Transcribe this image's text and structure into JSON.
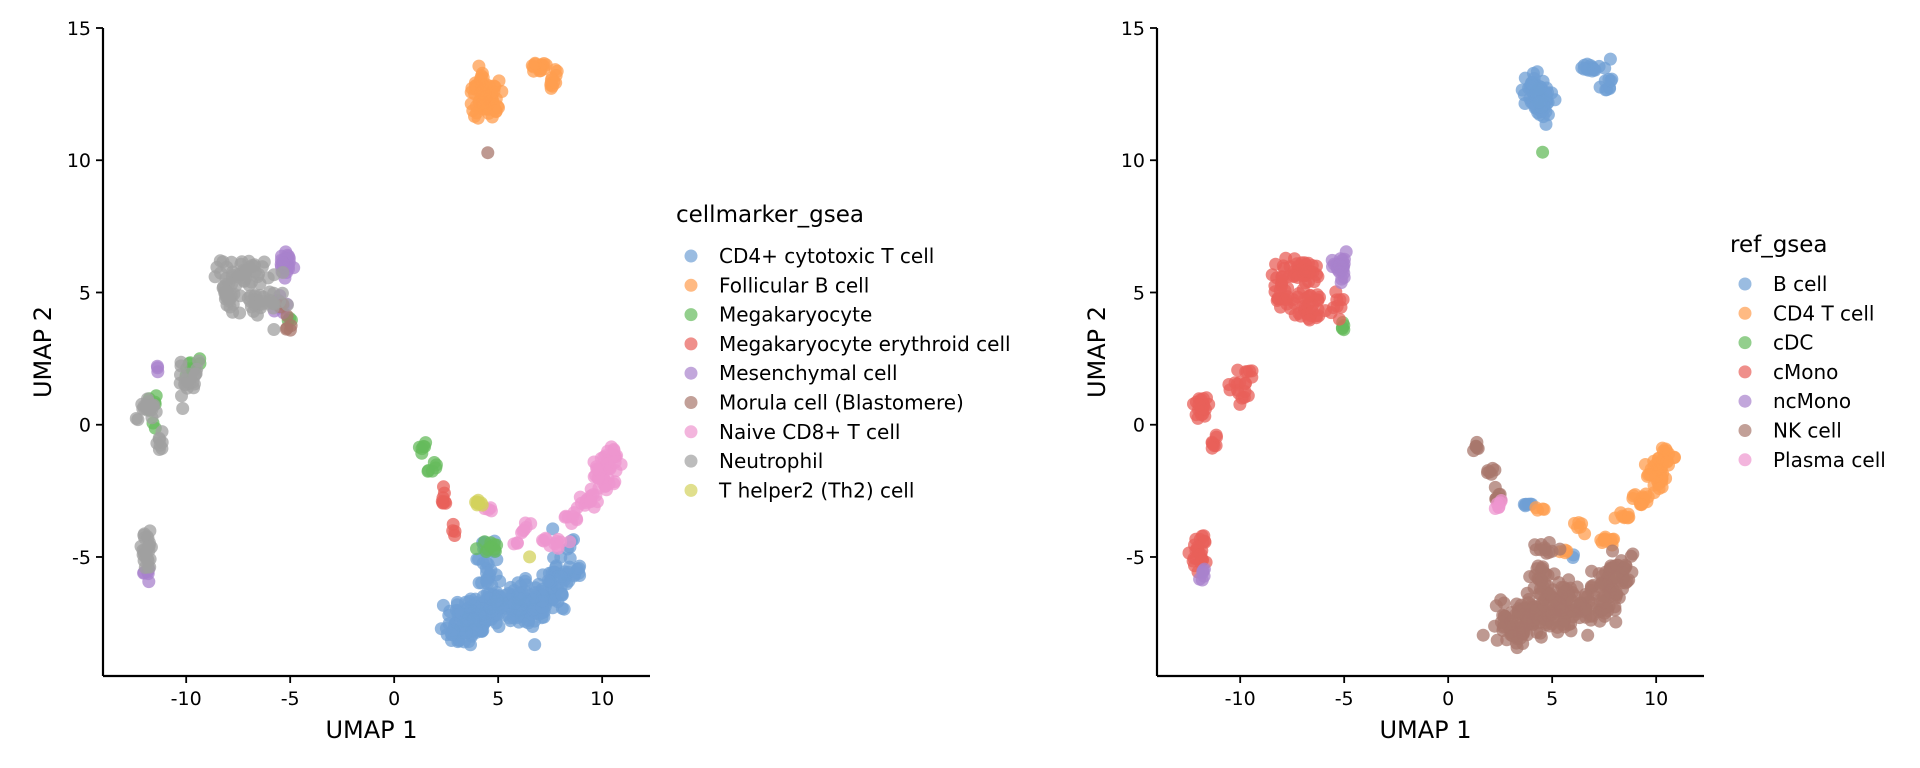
{
  "chart_data": [
    {
      "type": "scatter",
      "xlabel": "UMAP 1",
      "ylabel": "UMAP 2",
      "xlim": [
        -14,
        12.3
      ],
      "ylim": [
        -9.5,
        15
      ],
      "xticks": [
        -10,
        -5,
        0,
        5,
        10
      ],
      "xtick_labels": [
        "-10",
        "-5",
        "0",
        "5",
        "10"
      ],
      "yticks": [
        -5,
        0,
        5,
        10,
        15
      ],
      "ytick_labels": [
        "-5",
        "0",
        "5",
        "10",
        "15"
      ],
      "legend_title": "cellmarker_gsea",
      "legend_position": "right",
      "series": [
        {
          "name": "CD4+ cytotoxic T cell",
          "color": "#6f9fd4",
          "clusters": [
            [
              4.0,
              -7.2,
              1.2,
              0.6,
              70
            ],
            [
              6.0,
              -7.0,
              1.5,
              0.6,
              70
            ],
            [
              3.3,
              -7.8,
              0.8,
              0.5,
              35
            ],
            [
              7.5,
              -6.3,
              0.8,
              0.8,
              40
            ],
            [
              8.3,
              -5.5,
              0.6,
              0.8,
              30
            ],
            [
              4.5,
              -5.8,
              0.4,
              1.0,
              25
            ],
            [
              5.5,
              -6.5,
              0.8,
              0.4,
              25
            ],
            [
              4.3,
              -4.8,
              0.4,
              0.3,
              8
            ],
            [
              6.0,
              -6.2,
              0.5,
              0.4,
              10
            ],
            [
              7.6,
              -3.9,
              0.05,
              0.05,
              1
            ]
          ]
        },
        {
          "name": "Follicular B cell",
          "color": "#ff9d4f",
          "clusters": [
            [
              4.4,
              12.3,
              0.55,
              0.6,
              60
            ],
            [
              4.1,
              12.8,
              0.35,
              0.5,
              20
            ],
            [
              7.0,
              13.5,
              0.5,
              0.2,
              15
            ],
            [
              7.6,
              13.0,
              0.2,
              0.4,
              10
            ]
          ]
        },
        {
          "name": "Megakaryocyte",
          "color": "#65bb5c",
          "clusters": [
            [
              1.4,
              -0.8,
              0.15,
              0.2,
              6
            ],
            [
              1.9,
              -1.7,
              0.2,
              0.25,
              6
            ],
            [
              -9.7,
              2.1,
              0.4,
              0.3,
              10
            ],
            [
              -11.7,
              0.5,
              0.2,
              0.5,
              8
            ],
            [
              4.8,
              -4.6,
              0.6,
              0.2,
              10
            ],
            [
              -5.0,
              3.9,
              0.1,
              0.1,
              3
            ]
          ]
        },
        {
          "name": "Megakaryocyte erythroid cell",
          "color": "#e8605a",
          "clusters": [
            [
              2.4,
              -2.7,
              0.15,
              0.4,
              8
            ],
            [
              2.9,
              -4.1,
              0.15,
              0.3,
              4
            ]
          ]
        },
        {
          "name": "Mesenchymal cell",
          "color": "#a882cc",
          "clusters": [
            [
              -5.2,
              6.0,
              0.35,
              0.45,
              25
            ],
            [
              -5.5,
              4.5,
              0.3,
              0.5,
              10
            ],
            [
              -11.8,
              -5.6,
              0.3,
              0.2,
              6
            ],
            [
              -11.4,
              2.1,
              0.15,
              0.15,
              3
            ]
          ]
        },
        {
          "name": "Morula cell (Blastomere)",
          "color": "#a8776c",
          "clusters": [
            [
              4.5,
              10.3,
              0.05,
              0.05,
              1
            ],
            [
              -5.0,
              3.8,
              0.15,
              0.3,
              5
            ],
            [
              -5.4,
              4.5,
              0.1,
              0.1,
              2
            ]
          ]
        },
        {
          "name": "Naive CD8+ T cell",
          "color": "#ee95cf",
          "clusters": [
            [
              10.1,
              -1.9,
              0.45,
              0.5,
              30
            ],
            [
              9.3,
              -2.8,
              0.4,
              0.3,
              15
            ],
            [
              10.4,
              -1.2,
              0.35,
              0.3,
              15
            ],
            [
              8.5,
              -3.5,
              0.3,
              0.2,
              8
            ],
            [
              7.9,
              -4.4,
              0.3,
              0.3,
              8
            ],
            [
              6.3,
              -3.9,
              0.3,
              0.2,
              6
            ],
            [
              7.3,
              -4.3,
              0.2,
              0.2,
              4
            ],
            [
              4.5,
              -3.2,
              0.2,
              0.1,
              4
            ],
            [
              6.0,
              -4.5,
              0.2,
              0.1,
              3
            ]
          ]
        },
        {
          "name": "Neutrophil",
          "color": "#a0a0a0",
          "clusters": [
            [
              -7.1,
              5.8,
              1.0,
              0.4,
              40
            ],
            [
              -6.6,
              4.5,
              1.0,
              0.5,
              35
            ],
            [
              -8.0,
              5.0,
              0.35,
              0.6,
              20
            ],
            [
              -11.9,
              -4.8,
              0.35,
              0.6,
              25
            ],
            [
              -11.9,
              0.7,
              0.4,
              0.4,
              20
            ],
            [
              -11.2,
              -0.6,
              0.15,
              0.35,
              8
            ],
            [
              -10.0,
              1.5,
              0.4,
              0.6,
              14
            ],
            [
              -9.5,
              2.0,
              0.2,
              0.3,
              6
            ]
          ]
        },
        {
          "name": "T helper2 (Th2) cell",
          "color": "#d3d25c",
          "clusters": [
            [
              3.9,
              -3.0,
              0.25,
              0.1,
              8
            ],
            [
              6.5,
              -5.0,
              0.05,
              0.05,
              1
            ]
          ]
        }
      ]
    },
    {
      "type": "scatter",
      "xlabel": "UMAP 1",
      "ylabel": "UMAP 2",
      "xlim": [
        -14,
        12.3
      ],
      "ylim": [
        -9.5,
        15
      ],
      "xticks": [
        -10,
        -5,
        0,
        5,
        10
      ],
      "xtick_labels": [
        "-10",
        "-5",
        "0",
        "5",
        "10"
      ],
      "yticks": [
        -5,
        0,
        5,
        10,
        15
      ],
      "ytick_labels": [
        "-5",
        "0",
        "5",
        "10",
        "15"
      ],
      "legend_title": "ref_gsea",
      "legend_position": "right",
      "series": [
        {
          "name": "B cell",
          "color": "#6f9fd4",
          "clusters": [
            [
              4.4,
              12.3,
              0.55,
              0.6,
              60
            ],
            [
              4.1,
              12.8,
              0.35,
              0.5,
              20
            ],
            [
              7.0,
              13.5,
              0.5,
              0.2,
              15
            ],
            [
              7.6,
              13.0,
              0.2,
              0.4,
              10
            ],
            [
              3.9,
              -3.0,
              0.25,
              0.1,
              6
            ],
            [
              6.0,
              -5.0,
              0.1,
              0.1,
              2
            ]
          ]
        },
        {
          "name": "CD4 T cell",
          "color": "#ff9d4f",
          "clusters": [
            [
              10.1,
              -1.9,
              0.45,
              0.5,
              30
            ],
            [
              9.3,
              -2.8,
              0.4,
              0.3,
              15
            ],
            [
              10.4,
              -1.2,
              0.35,
              0.3,
              15
            ],
            [
              8.5,
              -3.5,
              0.3,
              0.2,
              8
            ],
            [
              7.9,
              -4.4,
              0.3,
              0.3,
              6
            ],
            [
              6.3,
              -3.9,
              0.3,
              0.2,
              6
            ],
            [
              4.5,
              -3.2,
              0.2,
              0.1,
              4
            ],
            [
              5.5,
              -4.8,
              0.3,
              0.1,
              4
            ],
            [
              7.4,
              -4.3,
              0.2,
              0.2,
              4
            ]
          ]
        },
        {
          "name": "cDC",
          "color": "#65bb5c",
          "clusters": [
            [
              4.5,
              10.3,
              0.05,
              0.05,
              1
            ],
            [
              -5.0,
              3.7,
              0.15,
              0.2,
              5
            ]
          ]
        },
        {
          "name": "cMono",
          "color": "#e8605a",
          "clusters": [
            [
              -7.1,
              5.8,
              1.0,
              0.4,
              40
            ],
            [
              -6.6,
              4.5,
              1.0,
              0.5,
              35
            ],
            [
              -8.0,
              5.0,
              0.35,
              0.6,
              20
            ],
            [
              -11.9,
              -4.8,
              0.35,
              0.6,
              25
            ],
            [
              -11.9,
              0.7,
              0.4,
              0.4,
              20
            ],
            [
              -11.2,
              -0.6,
              0.15,
              0.35,
              8
            ],
            [
              -10.0,
              1.5,
              0.4,
              0.6,
              14
            ],
            [
              -9.5,
              2.0,
              0.2,
              0.3,
              6
            ],
            [
              -5.3,
              4.5,
              0.3,
              0.4,
              8
            ]
          ]
        },
        {
          "name": "ncMono",
          "color": "#a882cc",
          "clusters": [
            [
              -5.2,
              6.0,
              0.35,
              0.45,
              25
            ],
            [
              -11.8,
              -5.6,
              0.3,
              0.2,
              6
            ]
          ]
        },
        {
          "name": "NK cell",
          "color": "#a8776c",
          "clusters": [
            [
              4.0,
              -7.2,
              1.2,
              0.6,
              70
            ],
            [
              6.0,
              -7.0,
              1.5,
              0.6,
              70
            ],
            [
              3.3,
              -7.8,
              0.8,
              0.5,
              35
            ],
            [
              7.5,
              -6.3,
              0.8,
              0.8,
              40
            ],
            [
              8.3,
              -5.5,
              0.6,
              0.8,
              30
            ],
            [
              4.5,
              -5.8,
              0.4,
              1.0,
              25
            ],
            [
              5.5,
              -6.5,
              0.8,
              0.4,
              25
            ],
            [
              4.8,
              -4.6,
              0.6,
              0.2,
              10
            ],
            [
              1.4,
              -0.8,
              0.15,
              0.2,
              6
            ],
            [
              1.9,
              -1.7,
              0.2,
              0.25,
              6
            ],
            [
              2.4,
              -2.7,
              0.15,
              0.4,
              8
            ]
          ]
        },
        {
          "name": "Plasma cell",
          "color": "#ee95cf",
          "clusters": [
            [
              2.4,
              -3.1,
              0.15,
              0.3,
              6
            ]
          ]
        }
      ]
    }
  ]
}
